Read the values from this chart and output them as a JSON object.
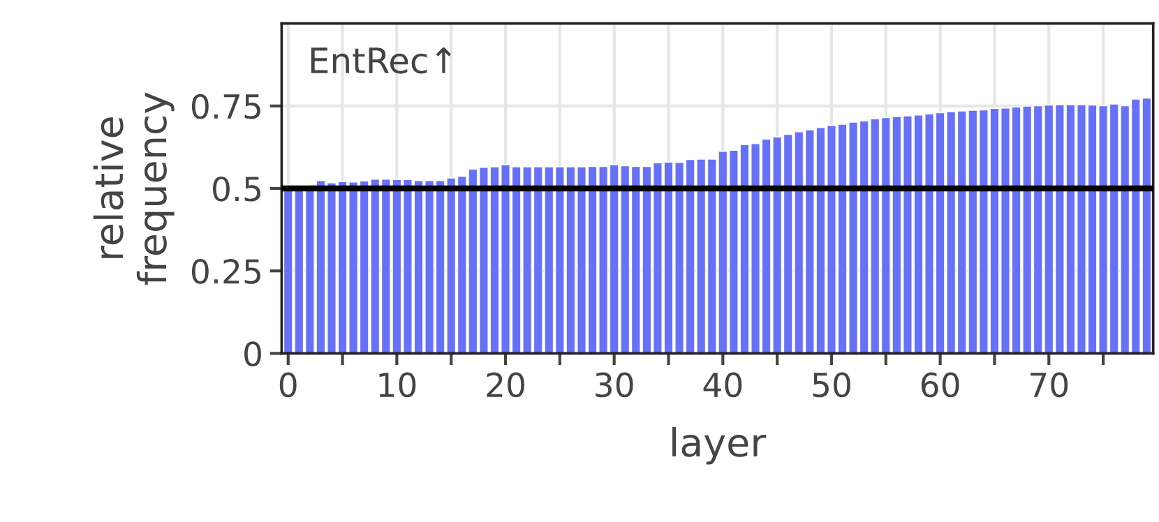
{
  "chart_data": {
    "type": "bar",
    "title": "EntRec↑",
    "xlabel": "layer",
    "ylabel": "relative\nfrequency",
    "x": [
      0,
      1,
      2,
      3,
      4,
      5,
      6,
      7,
      8,
      9,
      10,
      11,
      12,
      13,
      14,
      15,
      16,
      17,
      18,
      19,
      20,
      21,
      22,
      23,
      24,
      25,
      26,
      27,
      28,
      29,
      30,
      31,
      32,
      33,
      34,
      35,
      36,
      37,
      38,
      39,
      40,
      41,
      42,
      43,
      44,
      45,
      46,
      47,
      48,
      49,
      50,
      51,
      52,
      53,
      54,
      55,
      56,
      57,
      58,
      59,
      60,
      61,
      62,
      63,
      64,
      65,
      66,
      67,
      68,
      69,
      70,
      71,
      72,
      73,
      74,
      75,
      76,
      77,
      78,
      79
    ],
    "values": [
      0.5,
      0.5,
      0.5,
      0.524,
      0.517,
      0.521,
      0.52,
      0.523,
      0.528,
      0.528,
      0.527,
      0.527,
      0.524,
      0.524,
      0.524,
      0.532,
      0.537,
      0.559,
      0.564,
      0.566,
      0.572,
      0.566,
      0.566,
      0.566,
      0.566,
      0.566,
      0.566,
      0.566,
      0.567,
      0.567,
      0.572,
      0.569,
      0.567,
      0.567,
      0.578,
      0.58,
      0.579,
      0.588,
      0.589,
      0.589,
      0.613,
      0.616,
      0.633,
      0.636,
      0.65,
      0.656,
      0.664,
      0.672,
      0.678,
      0.685,
      0.691,
      0.695,
      0.701,
      0.705,
      0.711,
      0.715,
      0.718,
      0.72,
      0.723,
      0.726,
      0.73,
      0.733,
      0.735,
      0.737,
      0.738,
      0.743,
      0.744,
      0.747,
      0.75,
      0.751,
      0.753,
      0.754,
      0.754,
      0.754,
      0.753,
      0.751,
      0.756,
      0.751,
      0.771,
      0.774
    ],
    "color": "#6670f8",
    "xlim": [
      -0.6,
      79.6
    ],
    "ylim": [
      0,
      1.0
    ],
    "xticks": [
      0,
      {
        "value": 5,
        "label": null
      },
      10,
      {
        "value": 15,
        "label": null
      },
      20,
      {
        "value": 25,
        "label": null
      },
      30,
      {
        "value": 35,
        "label": null
      },
      40,
      {
        "value": 45,
        "label": null
      },
      50,
      {
        "value": 55,
        "label": null
      },
      60,
      {
        "value": 65,
        "label": null
      },
      70,
      {
        "value": 75,
        "label": null
      }
    ],
    "yticks": [
      0,
      0.25,
      0.5,
      0.75
    ],
    "ref_lines": [
      {
        "axis": "y",
        "value": 0.5,
        "color": "#000000",
        "line_style": "solid"
      }
    ],
    "grid": true,
    "legend": false
  }
}
